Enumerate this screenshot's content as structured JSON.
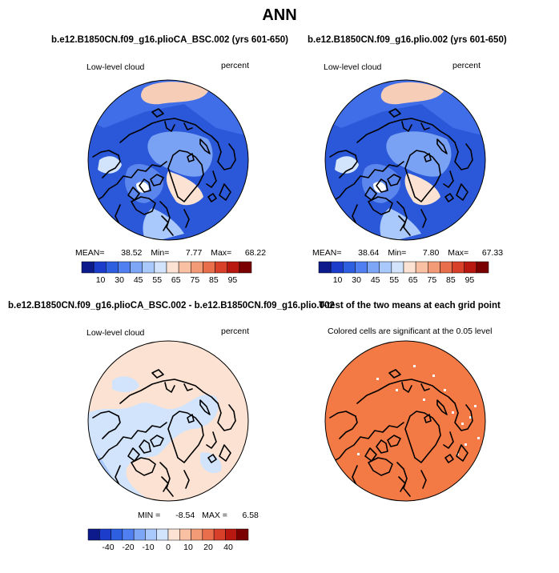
{
  "title": "ANN",
  "panels": [
    {
      "title": "b.e12.B1850CN.f09_g16.plioCA_BSC.002 (yrs 601-650)",
      "left_label": "Low-level cloud",
      "right_label": "percent",
      "stats": {
        "mean_label": "MEAN=",
        "mean": "38.52",
        "min_label": "Min=",
        "min": "7.77",
        "max_label": "Max=",
        "max": "68.22"
      }
    },
    {
      "title": "b.e12.B1850CN.f09_g16.plio.002 (yrs 601-650)",
      "left_label": "Low-level cloud",
      "right_label": "percent",
      "stats": {
        "mean_label": "MEAN=",
        "mean": "38.64",
        "min_label": "Min=",
        "min": "7.80",
        "max_label": "Max=",
        "max": "67.33"
      }
    },
    {
      "title": "b.e12.B1850CN.f09_g16.plioCA_BSC.002 - b.e12.B1850CN.f09_g16.plio.002",
      "left_label": "Low-level cloud",
      "right_label": "percent",
      "stats": {
        "min_label": "MIN =",
        "min": "-8.54",
        "max_label": "MAX =",
        "max": "6.58"
      }
    },
    {
      "title": "T-test of the two means at each grid point",
      "left_label": "Colored cells are significant at the 0.05 level"
    }
  ],
  "chart_data": [
    {
      "type": "heatmap",
      "title": "b.e12.B1850CN.f09_g16.plioCA_BSC.002 (yrs 601-650)",
      "variable": "Low-level cloud",
      "units": "percent",
      "projection": "north polar stereographic",
      "mean": 38.52,
      "min": 7.77,
      "max": 68.22,
      "colorbar_ticks": [
        10,
        30,
        45,
        55,
        65,
        75,
        85,
        95
      ],
      "colorbar_colors": [
        "#0d1a8c",
        "#1c3ccc",
        "#2e5fe0",
        "#4f7ff0",
        "#7ea6f6",
        "#a9c8fb",
        "#d2e4fc",
        "#fbe2d2",
        "#f9c0a3",
        "#f39a77",
        "#e86e4c",
        "#d8402a",
        "#b81810",
        "#7a0000"
      ]
    },
    {
      "type": "heatmap",
      "title": "b.e12.B1850CN.f09_g16.plio.002 (yrs 601-650)",
      "variable": "Low-level cloud",
      "units": "percent",
      "projection": "north polar stereographic",
      "mean": 38.64,
      "min": 7.8,
      "max": 67.33,
      "colorbar_ticks": [
        10,
        30,
        45,
        55,
        65,
        75,
        85,
        95
      ],
      "colorbar_colors": [
        "#0d1a8c",
        "#1c3ccc",
        "#2e5fe0",
        "#4f7ff0",
        "#7ea6f6",
        "#a9c8fb",
        "#d2e4fc",
        "#fbe2d2",
        "#f9c0a3",
        "#f39a77",
        "#e86e4c",
        "#d8402a",
        "#b81810",
        "#7a0000"
      ]
    },
    {
      "type": "heatmap",
      "title": "b.e12.B1850CN.f09_g16.plioCA_BSC.002 - b.e12.B1850CN.f09_g16.plio.002",
      "variable": "Low-level cloud",
      "units": "percent",
      "projection": "north polar stereographic",
      "min": -8.54,
      "max": 6.58,
      "colorbar_ticks": [
        -40,
        -20,
        -10,
        0,
        10,
        20,
        40
      ],
      "colorbar_colors": [
        "#0d1a8c",
        "#1c3ccc",
        "#2e5fe0",
        "#4f7ff0",
        "#7ea6f6",
        "#a9c8fb",
        "#d2e4fc",
        "#fbe2d2",
        "#f9c0a3",
        "#f39a77",
        "#e86e4c",
        "#d8402a",
        "#b81810",
        "#7a0000"
      ]
    },
    {
      "type": "heatmap",
      "title": "T-test of the two means at each grid point",
      "note": "Colored cells are significant at the 0.05 level",
      "projection": "north polar stereographic",
      "significant_color": "#f47a45"
    }
  ]
}
